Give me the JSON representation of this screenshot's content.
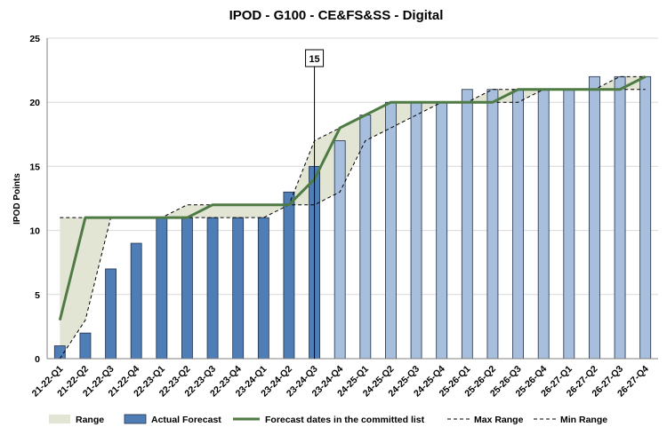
{
  "chart_data": {
    "type": "bar",
    "title": "IPOD - G100 - CE&FS&SS - Digital",
    "xlabel": "",
    "ylabel": "IPOD Points",
    "ylim": [
      0,
      25
    ],
    "yticks": [
      0,
      5,
      10,
      15,
      20,
      25
    ],
    "grid": true,
    "categories": [
      "21-22-Q1",
      "21-22-Q2",
      "21-22-Q3",
      "21-22-Q4",
      "22-23-Q1",
      "22-23-Q2",
      "22-23-Q3",
      "22-23-Q4",
      "23-24-Q1",
      "23-24-Q2",
      "23-24-Q3",
      "23-24-Q4",
      "24-25-Q1",
      "24-25-Q2",
      "24-25-Q3",
      "24-25-Q4",
      "25-26-Q1",
      "25-26-Q2",
      "25-26-Q3",
      "25-26-Q4",
      "26-27-Q1",
      "26-27-Q2",
      "26-27-Q3",
      "26-27-Q4"
    ],
    "actual_count": 11,
    "series": [
      {
        "name": "Actual Forecast",
        "kind": "bar",
        "values": [
          1,
          2,
          7,
          9,
          11,
          11,
          11,
          11,
          11,
          13,
          15,
          17,
          19,
          20,
          20,
          20,
          21,
          21,
          21,
          21,
          21,
          22,
          22,
          22
        ],
        "color_actual": "#4f7eb6",
        "color_forecast": "#a7bedd"
      },
      {
        "name": "Forecast dates in the committed list",
        "kind": "line",
        "values": [
          3,
          11,
          11,
          11,
          11,
          11,
          12,
          12,
          12,
          12,
          14,
          18,
          19,
          20,
          20,
          20,
          20,
          20,
          21,
          21,
          21,
          21,
          21,
          22
        ],
        "color": "#4e7a44"
      },
      {
        "name": "Max Range",
        "kind": "dashed-line",
        "values": [
          11,
          11,
          11,
          11,
          11,
          12,
          12,
          12,
          12,
          12,
          17,
          18,
          19,
          20,
          20,
          20,
          20,
          21,
          21,
          21,
          21,
          21,
          22,
          22
        ],
        "color": "#000000"
      },
      {
        "name": "Min Range",
        "kind": "dashed-line",
        "values": [
          0,
          3,
          11,
          11,
          11,
          11,
          11,
          11,
          11,
          12,
          12,
          13,
          17,
          18,
          19,
          20,
          20,
          20,
          20,
          21,
          21,
          21,
          21,
          21
        ],
        "color": "#000000"
      }
    ],
    "range_color": "#e2e5d3",
    "legend": [
      "Range",
      "Actual Forecast",
      "Forecast dates in the committed list",
      "Max Range",
      "Min Range"
    ],
    "legend_position": "bottom",
    "annotations": [
      {
        "category": "23-24-Q3",
        "text": "15"
      }
    ]
  }
}
